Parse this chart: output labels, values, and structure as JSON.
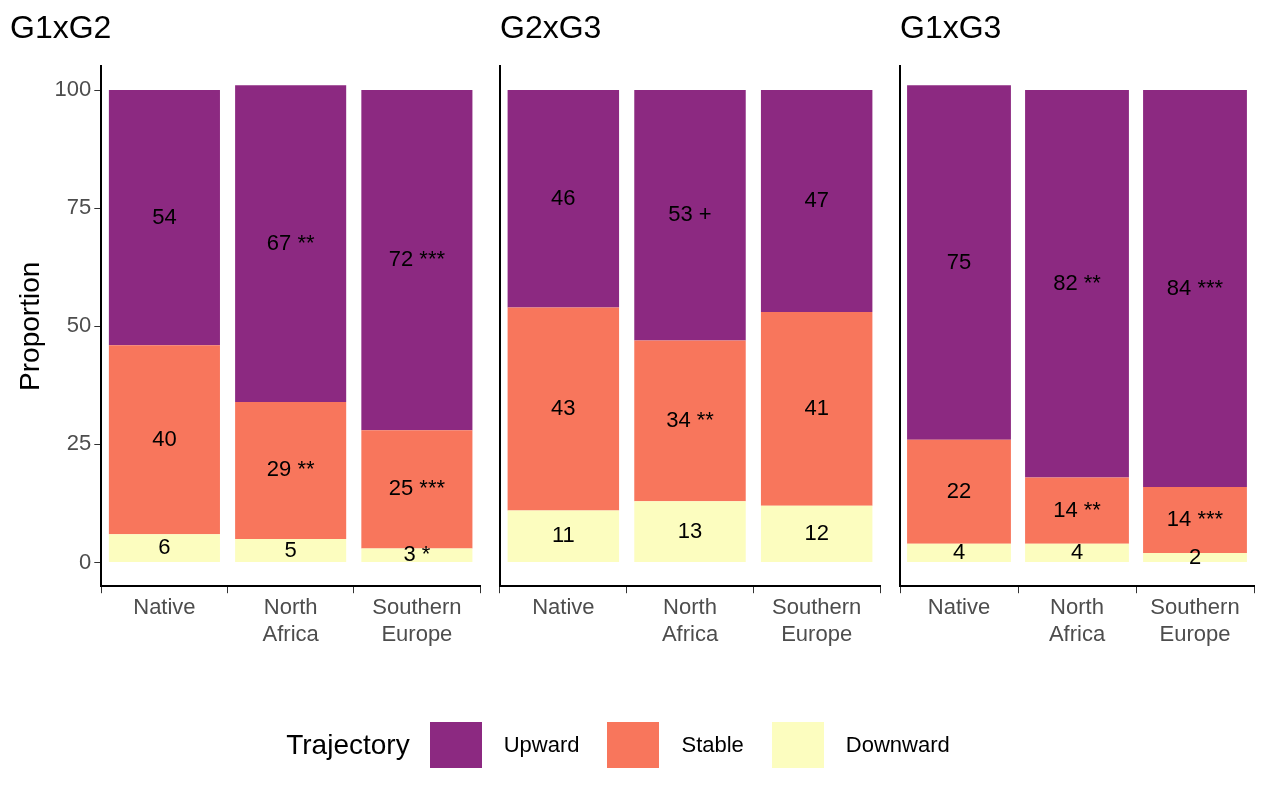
{
  "chart_data": [
    {
      "type": "bar",
      "title": "G1xG2",
      "ylabel": "Proportion",
      "categories": [
        "Native",
        "North Africa",
        "Southern Europe"
      ],
      "stacked": true,
      "ylim": [
        -5,
        105
      ],
      "yticks": [
        0,
        25,
        50,
        75,
        100
      ],
      "grid": false,
      "legend": "bottom",
      "legend_title": "Trajectory",
      "series": [
        {
          "name": "Downward",
          "color": "#fcfdbf",
          "values": [
            6,
            5,
            3
          ],
          "value_labels": [
            "6",
            "5",
            "3 *"
          ]
        },
        {
          "name": "Stable",
          "color": "#f8765c",
          "values": [
            40,
            29,
            25
          ],
          "value_labels": [
            "40",
            "29 **",
            "25 ***"
          ]
        },
        {
          "name": "Upward",
          "color": "#8c2981",
          "values": [
            54,
            67,
            72
          ],
          "value_labels": [
            "54",
            "67 **",
            "72 ***"
          ]
        }
      ]
    },
    {
      "type": "bar",
      "title": "G2xG3",
      "categories": [
        "Native",
        "North Africa",
        "Southern Europe"
      ],
      "stacked": true,
      "ylim": [
        -5,
        105
      ],
      "yticks": [
        0,
        25,
        50,
        75,
        100
      ],
      "grid": false,
      "tick_labels": "x",
      "series": [
        {
          "color": "#fcfdbf",
          "values": [
            11,
            13,
            12
          ],
          "value_labels": [
            "11",
            "13",
            "12"
          ]
        },
        {
          "color": "#f8765c",
          "values": [
            43,
            34,
            41
          ],
          "value_labels": [
            "43",
            "34 **",
            "41"
          ]
        },
        {
          "color": "#8c2981",
          "values": [
            46,
            53,
            47
          ],
          "value_labels": [
            "46",
            "53 +",
            "47"
          ]
        }
      ]
    },
    {
      "type": "bar",
      "title": "G1xG3",
      "categories": [
        "Native",
        "North Africa",
        "Southern Europe"
      ],
      "stacked": true,
      "ylim": [
        -5,
        105
      ],
      "yticks": [
        0,
        25,
        50,
        75,
        100
      ],
      "grid": false,
      "tick_labels": "x",
      "series": [
        {
          "color": "#fcfdbf",
          "values": [
            4,
            4,
            2
          ],
          "value_labels": [
            "4",
            "4",
            "2"
          ]
        },
        {
          "color": "#f8765c",
          "values": [
            22,
            14,
            14
          ],
          "value_labels": [
            "22",
            "14 **",
            "14 ***"
          ]
        },
        {
          "color": "#8c2981",
          "values": [
            75,
            82,
            84
          ],
          "value_labels": [
            "75",
            "82 **",
            "84 ***"
          ]
        }
      ]
    }
  ]
}
